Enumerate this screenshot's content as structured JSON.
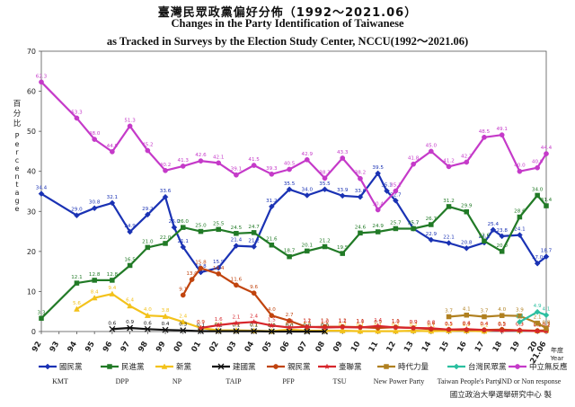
{
  "chart_data": {
    "type": "line",
    "title_zh": "臺灣民眾政黨偏好分佈（1992～2021.06）",
    "title_en_1": "Changes in the Party Identification of Taiwanese",
    "title_en_2": "as Tracked in Surveys by the Election Study Center, NCCU(1992～2021.06)",
    "ylabel_zh": "百分比",
    "ylabel_en": "Percentage",
    "xlabel_zh": "年度",
    "xlabel_en": "Year",
    "source": "國立政治大學選舉研究中心 製",
    "ylim": [
      0,
      70
    ],
    "yticks": [
      0,
      10,
      20,
      30,
      40,
      50,
      60,
      70
    ],
    "grid": false,
    "legend_position": "bottom",
    "x_labels": [
      "92",
      "93",
      "94",
      "95",
      "96",
      "97",
      "98",
      "99",
      "00",
      "01",
      "02",
      "03",
      "04",
      "05",
      "06",
      "07",
      "08",
      "09",
      "10",
      "11",
      "12",
      "13",
      "14",
      "15",
      "16",
      "17",
      "18",
      "19",
      "20",
      "21.06"
    ],
    "series": [
      {
        "key": "kmt",
        "name_zh": "國民黨",
        "name_en": "KMT",
        "color": "#1a32b4",
        "marker": "diamond",
        "x": [
          92,
          94,
          95,
          96,
          97,
          98,
          99,
          99.5,
          100,
          101,
          102,
          103,
          104,
          105,
          106,
          107,
          108,
          109,
          110,
          111,
          111.5,
          112,
          113,
          114,
          115,
          116,
          117,
          117.5,
          118,
          119,
          120,
          120.5
        ],
        "y": [
          34.4,
          29.0,
          30.8,
          32.1,
          24.9,
          29.2,
          33.6,
          26.0,
          21.1,
          14.8,
          15.9,
          21.4,
          21.2,
          31.2,
          35.5,
          34.0,
          35.5,
          33.9,
          33.6,
          39.5,
          35.1,
          32.7,
          25.7,
          22.9,
          22.1,
          20.8,
          22.2,
          25.4,
          23.8,
          24.1,
          17.0,
          18.7
        ]
      },
      {
        "key": "dpp",
        "name_zh": "民進黨",
        "name_en": "DPP",
        "color": "#217a26",
        "marker": "square",
        "x": [
          92,
          94,
          95,
          96,
          97,
          98,
          99,
          100,
          101,
          102,
          103,
          104,
          105,
          106,
          107,
          108,
          109,
          110,
          111,
          112,
          113,
          114,
          115,
          116,
          117,
          118,
          119,
          120,
          120.5
        ],
        "y": [
          3.3,
          12.1,
          12.8,
          12.8,
          16.5,
          21.0,
          22.0,
          26.0,
          25.0,
          25.5,
          24.5,
          24.7,
          21.6,
          18.7,
          20.1,
          21.2,
          19.5,
          24.6,
          24.9,
          25.7,
          25.7,
          26.7,
          31.2,
          29.9,
          22.6,
          20.0,
          28.6,
          34.0,
          31.4
        ]
      },
      {
        "key": "np",
        "name_zh": "新黨",
        "name_en": "NP",
        "color": "#f3c21b",
        "marker": "triangle",
        "x": [
          94,
          95,
          96,
          97,
          98,
          99,
          100,
          101,
          102,
          103,
          104,
          105,
          106,
          107,
          108,
          109,
          110,
          111,
          112,
          113,
          114,
          115,
          116,
          117,
          118,
          119,
          120,
          120.5
        ],
        "y": [
          5.6,
          8.4,
          9.4,
          6.4,
          4.0,
          3.8,
          2.4,
          0.9,
          0.3,
          0.3,
          0.2,
          0.1,
          0.5,
          0.2,
          0.2,
          0.2,
          0.1,
          0.1,
          0.1,
          0.2,
          0.1,
          0.2,
          0.2,
          0.1,
          0.5,
          0.3,
          0.2,
          0.3
        ]
      },
      {
        "key": "taip",
        "name_zh": "建國黨",
        "name_en": "TAIP",
        "color": "#111111",
        "marker": "x",
        "x": [
          96,
          97,
          98,
          99,
          100,
          101,
          102,
          103,
          104,
          105,
          106,
          107,
          108
        ],
        "y": [
          0.6,
          0.9,
          0.6,
          0.4,
          0.3,
          0.1,
          0.1,
          0.1,
          0.1,
          0.0,
          0.0,
          0.0,
          0.0
        ]
      },
      {
        "key": "pfp",
        "name_zh": "親民黨",
        "name_en": "PFP",
        "color": "#c1440e",
        "marker": "circle",
        "x": [
          100,
          100.5,
          101,
          102,
          103,
          104,
          105,
          106,
          107,
          108,
          109,
          110,
          111,
          112,
          113,
          114,
          115,
          116,
          117,
          118,
          119,
          120,
          120.5
        ],
        "y": [
          9.1,
          13.0,
          15.8,
          14.4,
          11.6,
          9.6,
          4.0,
          2.7,
          1.1,
          1.2,
          1.2,
          1.1,
          0.9,
          1.1,
          0.9,
          0.6,
          0.5,
          0.4,
          0.4,
          0.5,
          0.3,
          0.2,
          0.3
        ]
      },
      {
        "key": "tsu",
        "name_zh": "臺聯黨",
        "name_en": "TSU",
        "color": "#d7262c",
        "marker": "star",
        "x": [
          101,
          102,
          103,
          104,
          105,
          106,
          107,
          108,
          109,
          110,
          111,
          112,
          113,
          114,
          115,
          116,
          117,
          118,
          119,
          120,
          120.5
        ],
        "y": [
          0.9,
          1.6,
          2.1,
          2.4,
          1.5,
          1.0,
          1.2,
          1.0,
          1.1,
          1.0,
          1.4,
          1.0,
          0.9,
          0.8,
          0.5,
          0.6,
          0.4,
          0.2,
          0.3,
          0.1,
          0.1
        ]
      },
      {
        "key": "npp",
        "name_zh": "時代力量",
        "name_en": "New Power Party",
        "color": "#b08020",
        "marker": "square",
        "x": [
          115,
          116,
          117,
          118,
          119,
          120,
          120.5
        ],
        "y": [
          3.7,
          4.1,
          3.7,
          4.0,
          3.9,
          2.1,
          0.8
        ]
      },
      {
        "key": "tpp",
        "name_zh": "台灣民眾黨",
        "name_en": "Taiwan People's Party",
        "color": "#2bbfa0",
        "marker": "diamond",
        "x": [
          119,
          120,
          120.5
        ],
        "y": [
          2.4,
          4.9,
          4.1
        ]
      },
      {
        "key": "ind",
        "name_zh": "中立無反應",
        "name_en": "IND or Non response",
        "color": "#c53ac9",
        "marker": "circle",
        "x": [
          92,
          94,
          95,
          96,
          97,
          98,
          99,
          100,
          101,
          102,
          103,
          104,
          105,
          106,
          107,
          108,
          109,
          110,
          111,
          112,
          113,
          114,
          115,
          116,
          117,
          118,
          119,
          120,
          120.5
        ],
        "y": [
          62.3,
          53.3,
          48.0,
          44.9,
          51.3,
          45.2,
          40.2,
          41.3,
          42.6,
          42.1,
          39.1,
          41.5,
          39.3,
          40.5,
          42.9,
          38.3,
          43.3,
          38.2,
          30.4,
          35.1,
          41.8,
          45.0,
          41.2,
          42.3,
          48.5,
          49.1,
          40.0,
          40.9,
          44.4
        ]
      }
    ]
  }
}
